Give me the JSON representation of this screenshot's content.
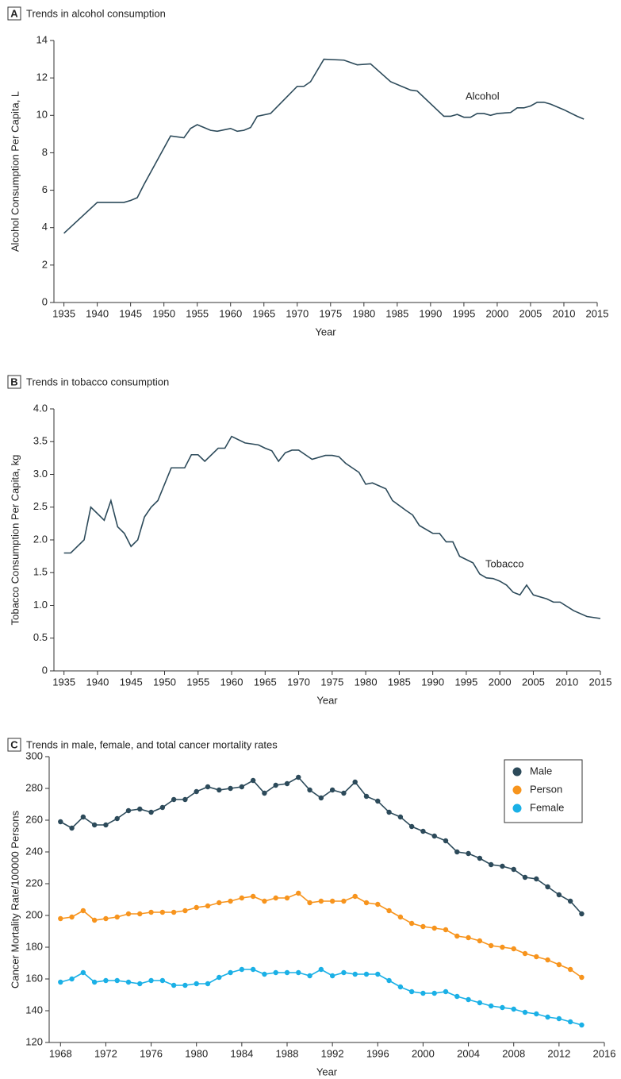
{
  "chart_data": [
    {
      "type": "line",
      "panel": "A",
      "title": "Trends in alcohol consumption",
      "xlabel": "Year",
      "ylabel": "Alcohol Consumption Per Capita, L",
      "x": [
        1935,
        1940,
        1944,
        1945,
        1946,
        1947,
        1951,
        1953,
        1954,
        1955,
        1957,
        1958,
        1960,
        1961,
        1962,
        1963,
        1964,
        1966,
        1970,
        1971,
        1972,
        1974,
        1977,
        1979,
        1981,
        1984,
        1987,
        1988,
        1992,
        1993,
        1994,
        1995,
        1996,
        1997,
        1998,
        1999,
        2000,
        2002,
        2003,
        2004,
        2005,
        2006,
        2007,
        2008,
        2010,
        2012,
        2013
      ],
      "series": [
        {
          "name": "Alcohol",
          "color": "#2c4a5a",
          "values": [
            3.7,
            5.35,
            5.35,
            5.45,
            5.6,
            6.3,
            8.9,
            8.8,
            9.3,
            9.5,
            9.2,
            9.15,
            9.3,
            9.15,
            9.2,
            9.35,
            9.95,
            10.1,
            11.55,
            11.55,
            11.8,
            13.0,
            12.95,
            12.7,
            12.75,
            11.8,
            11.35,
            11.3,
            9.95,
            9.95,
            10.05,
            9.9,
            9.9,
            10.1,
            10.1,
            10.0,
            10.1,
            10.15,
            10.4,
            10.4,
            10.5,
            10.7,
            10.7,
            10.6,
            10.3,
            9.95,
            9.8
          ]
        }
      ],
      "xlim": [
        1933.5,
        2015
      ],
      "xticks": [
        1935,
        1940,
        1945,
        1950,
        1955,
        1960,
        1965,
        1970,
        1975,
        1980,
        1985,
        1990,
        1995,
        2000,
        2005,
        2010,
        2015
      ],
      "ylim": [
        0,
        14
      ],
      "yticks": [
        0,
        2,
        4,
        6,
        8,
        10,
        12,
        14
      ],
      "grid": false,
      "legend": false
    },
    {
      "type": "line",
      "panel": "B",
      "title": "Trends in tobacco consumption",
      "xlabel": "Year",
      "ylabel": "Tobacco Consumption Per Capita, kg",
      "x": [
        1935,
        1936,
        1938,
        1939,
        1941,
        1942,
        1943,
        1944,
        1945,
        1946,
        1947,
        1948,
        1949,
        1951,
        1953,
        1954,
        1955,
        1956,
        1958,
        1959,
        1960,
        1962,
        1964,
        1965,
        1966,
        1967,
        1968,
        1969,
        1970,
        1971,
        1972,
        1974,
        1975,
        1976,
        1977,
        1979,
        1980,
        1981,
        1983,
        1984,
        1986,
        1987,
        1988,
        1990,
        1991,
        1992,
        1993,
        1994,
        1996,
        1997,
        1998,
        1999,
        2000,
        2001,
        2002,
        2003,
        2004,
        2005,
        2007,
        2008,
        2009,
        2011,
        2013,
        2015
      ],
      "series": [
        {
          "name": "Tobacco",
          "color": "#2c4a5a",
          "values": [
            1.8,
            1.8,
            2.0,
            2.5,
            2.3,
            2.6,
            2.2,
            2.1,
            1.9,
            2.0,
            2.35,
            2.5,
            2.6,
            3.1,
            3.1,
            3.3,
            3.3,
            3.2,
            3.4,
            3.4,
            3.58,
            3.48,
            3.45,
            3.4,
            3.36,
            3.2,
            3.33,
            3.37,
            3.37,
            3.3,
            3.23,
            3.29,
            3.29,
            3.27,
            3.17,
            3.03,
            2.85,
            2.87,
            2.78,
            2.6,
            2.45,
            2.38,
            2.22,
            2.1,
            2.1,
            1.97,
            1.97,
            1.75,
            1.65,
            1.48,
            1.42,
            1.41,
            1.37,
            1.31,
            1.2,
            1.16,
            1.31,
            1.16,
            1.1,
            1.05,
            1.05,
            0.92,
            0.83,
            0.8
          ]
        }
      ],
      "xlim": [
        1933.5,
        2015
      ],
      "xticks": [
        1935,
        1940,
        1945,
        1950,
        1955,
        1960,
        1965,
        1970,
        1975,
        1980,
        1985,
        1990,
        1995,
        2000,
        2005,
        2010,
        2015
      ],
      "ylim": [
        0,
        4
      ],
      "yticks": [
        0,
        0.5,
        {
          "value": 1,
          "label": "1.0"
        },
        1.5,
        {
          "value": 2,
          "label": "2.0"
        },
        2.5,
        {
          "value": 3,
          "label": "3.0"
        },
        3.5,
        {
          "value": 4,
          "label": "4.0"
        }
      ],
      "grid": false,
      "legend": false
    },
    {
      "type": "line",
      "panel": "C",
      "title": "Trends in male, female, and total cancer mortality rates",
      "xlabel": "Year",
      "ylabel": "Cancer Mortality Rate/100000 Persons",
      "x": [
        1968,
        1969,
        1970,
        1971,
        1972,
        1973,
        1974,
        1975,
        1976,
        1977,
        1978,
        1979,
        1980,
        1981,
        1982,
        1983,
        1984,
        1985,
        1986,
        1987,
        1988,
        1989,
        1990,
        1991,
        1992,
        1993,
        1994,
        1995,
        1996,
        1997,
        1998,
        1999,
        2000,
        2001,
        2002,
        2003,
        2004,
        2005,
        2006,
        2007,
        2008,
        2009,
        2010,
        2011,
        2012,
        2013,
        2014
      ],
      "series": [
        {
          "name": "Male",
          "color": "#2c4a5a",
          "values": [
            259,
            255,
            262,
            257,
            257,
            261,
            266,
            267,
            265,
            268,
            273,
            273,
            278,
            281,
            279,
            280,
            281,
            285,
            277,
            282,
            283,
            287,
            279,
            274,
            279,
            277,
            284,
            275,
            272,
            265,
            262,
            256,
            253,
            250,
            247,
            240,
            239,
            236,
            232,
            231,
            229,
            224,
            223,
            218,
            213,
            209,
            201
          ]
        },
        {
          "name": "Person",
          "color": "#f7941d",
          "values": [
            198,
            199,
            203,
            197,
            198,
            199,
            201,
            201,
            202,
            202,
            202,
            203,
            205,
            206,
            208,
            209,
            211,
            212,
            209,
            211,
            211,
            214,
            208,
            209,
            209,
            209,
            212,
            208,
            207,
            203,
            199,
            195,
            193,
            192,
            191,
            187,
            186,
            184,
            181,
            180,
            179,
            176,
            174,
            172,
            169,
            166,
            161
          ]
        },
        {
          "name": "Female",
          "color": "#1ab0e6",
          "values": [
            158,
            160,
            164,
            158,
            159,
            159,
            158,
            157,
            159,
            159,
            156,
            156,
            157,
            157,
            161,
            164,
            166,
            166,
            163,
            164,
            164,
            164,
            162,
            166,
            162,
            164,
            163,
            163,
            163,
            159,
            155,
            152,
            151,
            151,
            152,
            149,
            147,
            145,
            143,
            142,
            141,
            139,
            138,
            136,
            135,
            133,
            131
          ]
        }
      ],
      "xlim": [
        1967,
        2016
      ],
      "xticks": [
        1968,
        1972,
        1976,
        1980,
        1984,
        1988,
        1992,
        1996,
        2000,
        2004,
        2008,
        2012,
        2016
      ],
      "ylim": [
        120,
        300
      ],
      "yticks": [
        120,
        140,
        160,
        180,
        200,
        220,
        240,
        260,
        280,
        300
      ],
      "grid": false,
      "markers": true,
      "legend": "top-right"
    }
  ]
}
